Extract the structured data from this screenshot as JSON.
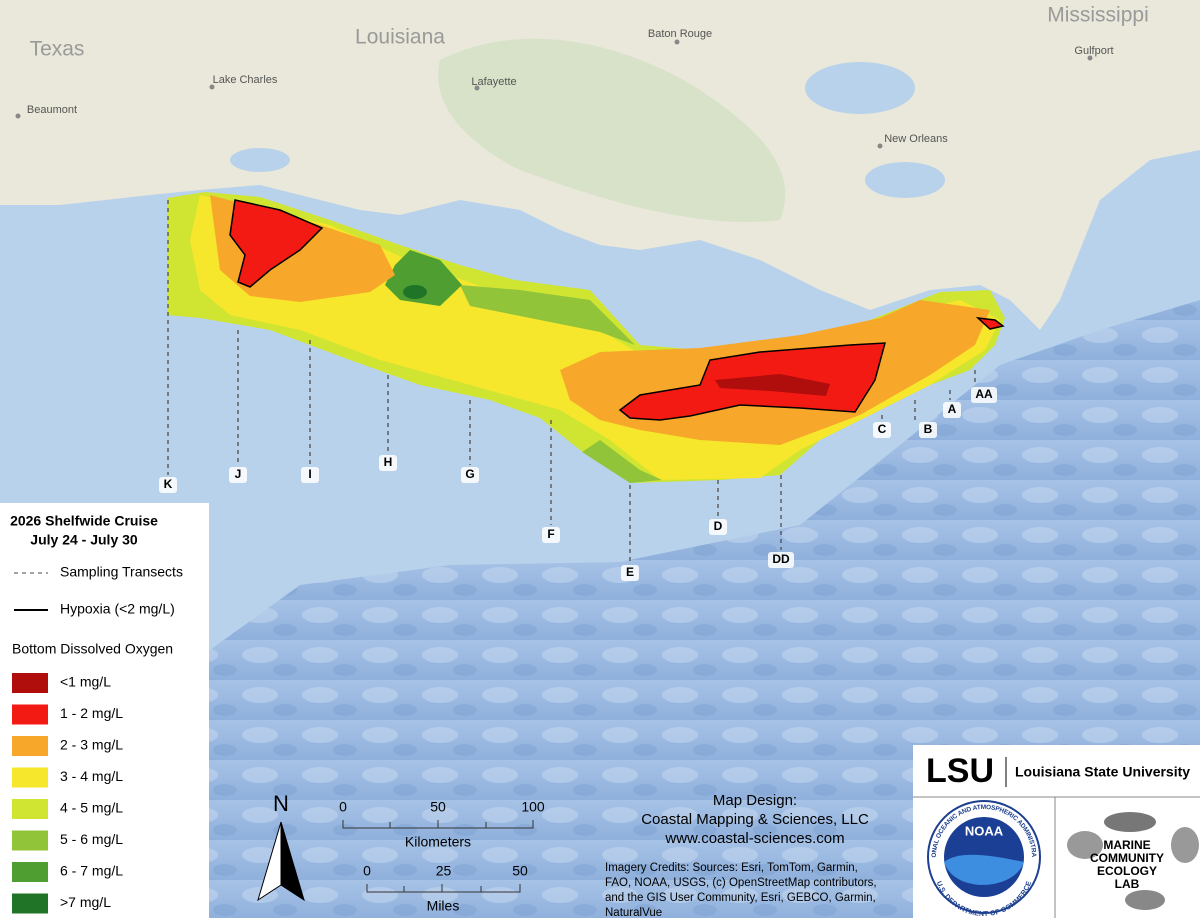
{
  "map_labels": {
    "states": [
      "Texas",
      "Louisiana",
      "Mississippi"
    ],
    "cities": [
      "Baton Rouge",
      "Gulfport",
      "Lake Charles",
      "Lafayette",
      "Beaumont",
      "New Orleans"
    ]
  },
  "transects": [
    "K",
    "J",
    "I",
    "H",
    "G",
    "F",
    "E",
    "D",
    "DD",
    "C",
    "B",
    "A",
    "AA"
  ],
  "legend": {
    "title": "2026 Shelfwide Cruise",
    "dates": "July 24 - July 30",
    "sampling_transects": "Sampling Transects",
    "hypoxia": "Hypoxia (<2 mg/L)",
    "oxygen_title": "Bottom Dissolved Oxygen",
    "classes": [
      {
        "label": "<1 mg/L",
        "color": "#b00d0d"
      },
      {
        "label": "1 - 2 mg/L",
        "color": "#f31a14"
      },
      {
        "label": "2 - 3 mg/L",
        "color": "#f7a82a"
      },
      {
        "label": "3 - 4 mg/L",
        "color": "#f6e62c"
      },
      {
        "label": "4 - 5 mg/L",
        "color": "#cfe531"
      },
      {
        "label": "5 - 6 mg/L",
        "color": "#92c43a"
      },
      {
        "label": "6 - 7 mg/L",
        "color": "#4e9e31"
      },
      {
        "label": ">7 mg/L",
        "color": "#1f7427"
      }
    ]
  },
  "north_arrow": "N",
  "scale_bar": {
    "kilometers": {
      "label": "Kilometers",
      "ticks": [
        0,
        50,
        100
      ]
    },
    "miles": {
      "label": "Miles",
      "ticks": [
        0,
        25,
        50
      ]
    }
  },
  "credits": {
    "design": [
      "Map Design:",
      "Coastal Mapping & Sciences, LLC",
      "www.coastal-sciences.com"
    ],
    "imagery": [
      "Imagery Credits: Sources:  Esri, TomTom, Garmin,",
      "FAO, NOAA, USGS, (c) OpenStreetMap contributors,",
      "and the GIS User Community, Esri, GEBCO, Garmin,",
      "NaturalVue"
    ]
  },
  "logos": {
    "lsu": "LSU",
    "lsu_name": "Louisiana State University",
    "noaa": "NOAA",
    "noaa_ring_top": "NATIONAL OCEANIC AND ATMOSPHERIC ADMINISTRATION",
    "noaa_ring_bottom": "U.S. DEPARTMENT OF COMMERCE",
    "lab": [
      "MARINE",
      "COMMUNITY",
      "ECOLOGY",
      "LAB"
    ]
  }
}
